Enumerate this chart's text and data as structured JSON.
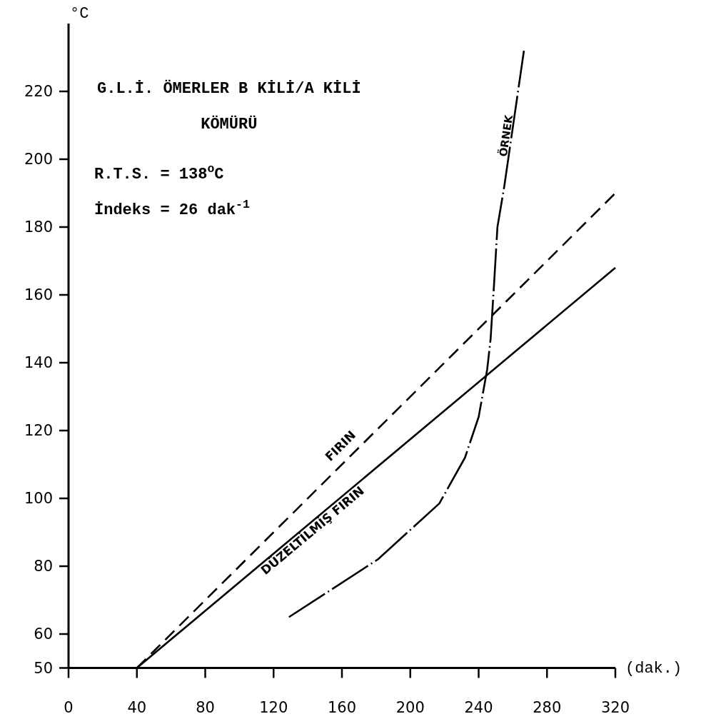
{
  "chart_data": {
    "type": "line",
    "title": "G.L.İ. ÖMERLER B KİLİ/A KİLİ KÖMÜRÜ",
    "xlabel": "(dak.)",
    "ylabel": "°C",
    "annotations": [
      "R.T.S. = 138$^{o}$C",
      "İndeks = 26 dak$^{-1}$"
    ],
    "xlim": [
      0,
      320
    ],
    "ylim": [
      50,
      240
    ],
    "xticks": [
      0,
      40,
      80,
      120,
      160,
      200,
      240,
      280,
      320
    ],
    "yticks": [
      50,
      60,
      80,
      100,
      120,
      140,
      160,
      180,
      200,
      220
    ],
    "grid": false,
    "legend": false,
    "marker": "none",
    "series": [
      {
        "name": "FIRIN",
        "color": "#000000",
        "line_style": "dashed",
        "x": [
          40,
          320
        ],
        "values": [
          50,
          190
        ]
      },
      {
        "name": "DÜZELTİLMİŞ FIRIN",
        "color": "#000000",
        "line_style": "solid",
        "x": [
          40,
          320
        ],
        "values": [
          50,
          168
        ]
      },
      {
        "name": "ÖRNEK",
        "color": "#000000",
        "line_style": "dashdot",
        "x": [
          129,
          181,
          217,
          232,
          240,
          245,
          247,
          249,
          251,
          255,
          266.5
        ],
        "values": [
          65,
          82,
          98.5,
          112,
          124,
          138,
          147,
          163,
          180,
          192,
          232
        ]
      }
    ]
  }
}
